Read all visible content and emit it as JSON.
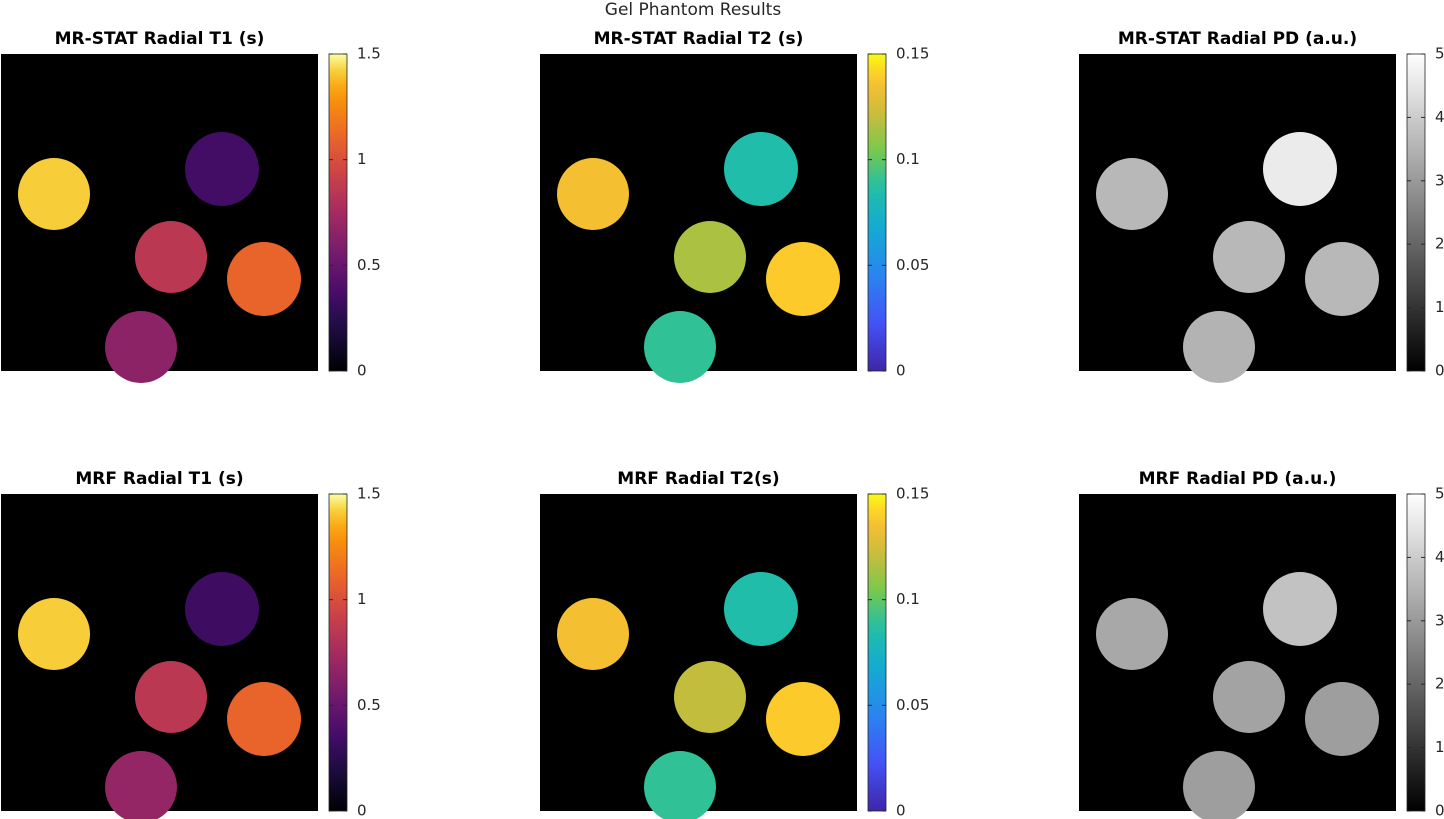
{
  "title": "Gel Phantom Results",
  "chart_data": [
    {
      "type": "image",
      "title": "MR-STAT Radial T1 (s)",
      "colormap": "inferno",
      "clim": [
        0,
        1.5
      ],
      "cticks": [
        0,
        0.5,
        1,
        1.5
      ],
      "values": [
        1.42,
        0.35,
        0.85,
        1.1,
        0.65
      ]
    },
    {
      "type": "image",
      "title": "MR-STAT Radial T2 (s)",
      "colormap": "parula",
      "clim": [
        0,
        0.15
      ],
      "cticks": [
        0,
        0.05,
        0.1,
        0.15
      ],
      "values": [
        0.135,
        0.085,
        0.115,
        0.14,
        0.09
      ]
    },
    {
      "type": "image",
      "title": "MR-STAT Radial PD (a.u.)",
      "colormap": "gray",
      "clim": [
        0,
        5
      ],
      "cticks": [
        0,
        1,
        2,
        3,
        4,
        5
      ],
      "values": [
        3.6,
        4.6,
        3.6,
        3.6,
        3.5
      ]
    },
    {
      "type": "image",
      "title": "MRF Radial T1 (s)",
      "colormap": "inferno",
      "clim": [
        0,
        1.5
      ],
      "cticks": [
        0,
        0.5,
        1,
        1.5
      ],
      "values": [
        1.42,
        0.33,
        0.85,
        1.1,
        0.68
      ]
    },
    {
      "type": "image",
      "title": "MRF Radial T2(s)",
      "colormap": "parula",
      "clim": [
        0,
        0.15
      ],
      "cticks": [
        0,
        0.05,
        0.1,
        0.15
      ],
      "values": [
        0.135,
        0.085,
        0.12,
        0.14,
        0.09
      ]
    },
    {
      "type": "image",
      "title": "MRF Radial PD (a.u.)",
      "colormap": "gray",
      "clim": [
        0,
        5
      ],
      "cticks": [
        0,
        1,
        2,
        3,
        4,
        5
      ],
      "values": [
        3.3,
        3.8,
        3.2,
        3.1,
        3.1
      ]
    }
  ]
}
